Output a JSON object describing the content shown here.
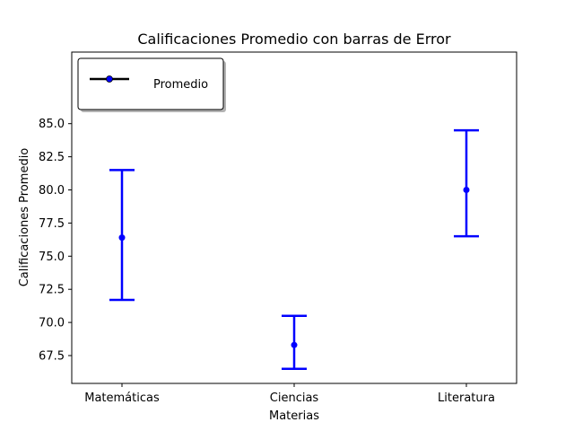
{
  "chart_data": {
    "type": "errorbar",
    "title": "Calificaciones Promedio con barras de Error",
    "xlabel": "Materias",
    "ylabel": "Calificaciones Promedio",
    "categories": [
      "Matemáticas",
      "Ciencias",
      "Literatura"
    ],
    "series": [
      {
        "name": "Promedio",
        "color": "#0000ff",
        "values": [
          76.4,
          68.3,
          80.0
        ],
        "error_low": [
          71.7,
          66.5,
          76.5
        ],
        "error_high": [
          81.5,
          70.5,
          84.5
        ]
      }
    ],
    "y_ticks": [
      "67.5",
      "70.0",
      "72.5",
      "75.0",
      "77.5",
      "80.0",
      "82.5",
      "85.0"
    ],
    "y_tick_values": [
      67.5,
      70.0,
      72.5,
      75.0,
      77.5,
      80.0,
      82.5,
      85.0
    ],
    "ylim": [
      65.4,
      90.4
    ],
    "legend_position": "upper-left",
    "legend_line_color": "#000000",
    "grid": false
  }
}
